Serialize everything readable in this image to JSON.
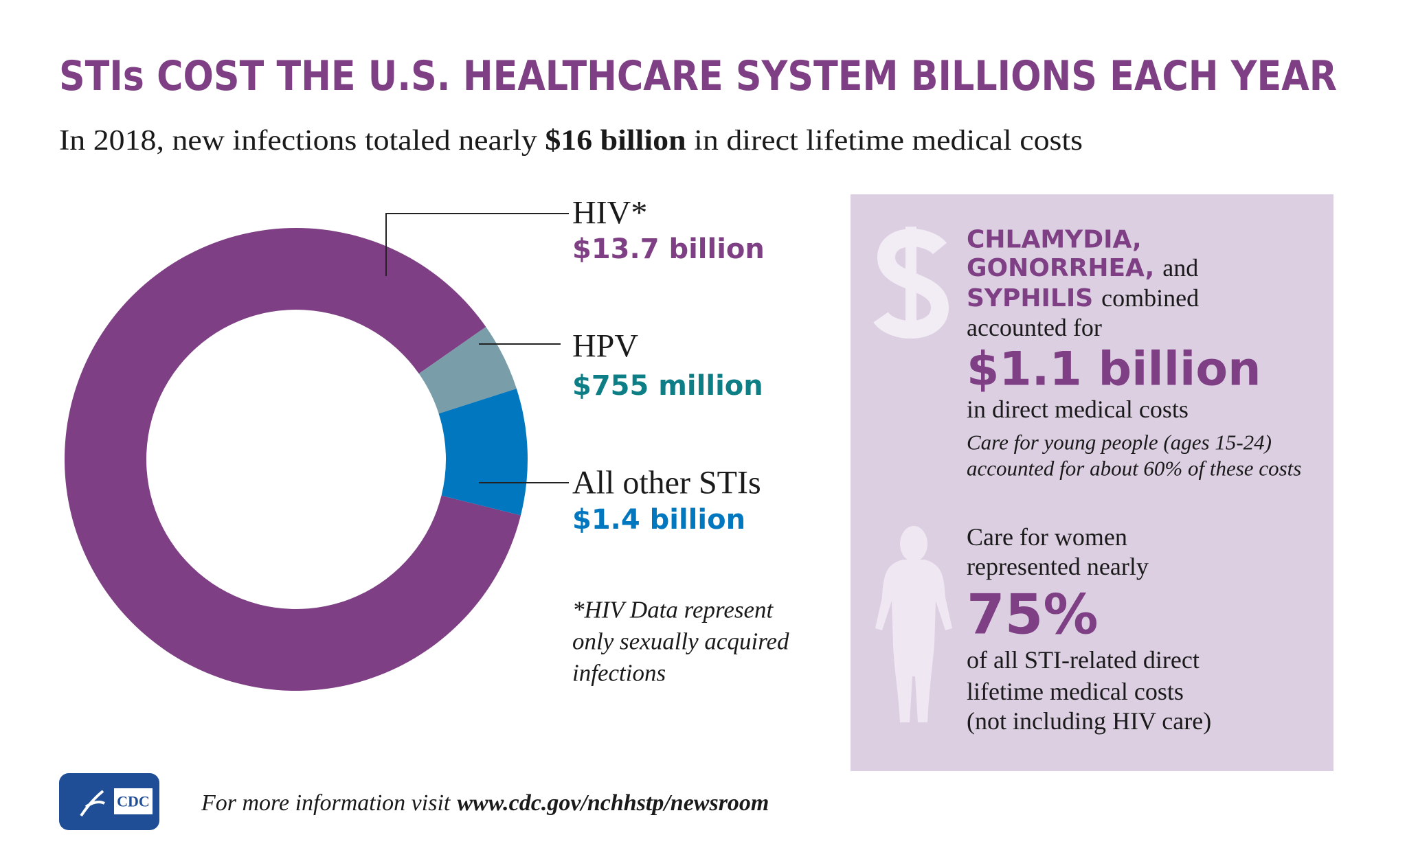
{
  "chart_data": {
    "type": "pie",
    "title": "STIs COST THE U.S. HEALTHCARE SYSTEM BILLIONS EACH YEAR",
    "subtitle": [
      "In 2018, new infections totaled nearly ",
      "$16 billion",
      " in direct lifetime medical costs"
    ],
    "categories": [
      "HIV*",
      "HPV",
      "All other STIs"
    ],
    "values": [
      13700000000,
      755000000,
      1400000000
    ],
    "value_labels": [
      "$13.7 billion",
      "$755 million",
      "$1.4 billion"
    ],
    "colors": [
      "#7e3f84",
      "#7a9daa",
      "#0077bf"
    ],
    "label_colors": [
      "#7e3f84",
      "#0e7e86",
      "#0077bf"
    ],
    "annotation": [
      "*HIV Data represent",
      "only sexually acquired",
      "infections"
    ]
  },
  "panel": {
    "stat1": {
      "diseases": [
        "CHLAMYDIA,",
        "GONORRHEA,",
        "SYPHILIS"
      ],
      "connectors": [
        "and",
        "combined"
      ],
      "lead": "accounted for",
      "amount": "$1.1 billion",
      "after": "in direct medical costs",
      "note": [
        "Care for young people (ages 15-24)",
        "accounted for about 60% of these costs"
      ]
    },
    "stat2": {
      "lead": [
        "Care for women",
        "represented nearly"
      ],
      "amount": "75%",
      "after": [
        "of all STI-related direct",
        "lifetime medical costs",
        "(not including HIV care)"
      ]
    }
  },
  "footer": {
    "logo": "CDC",
    "text": "For more information visit",
    "url": "www.cdc.gov/nchhstp/newsroom"
  }
}
